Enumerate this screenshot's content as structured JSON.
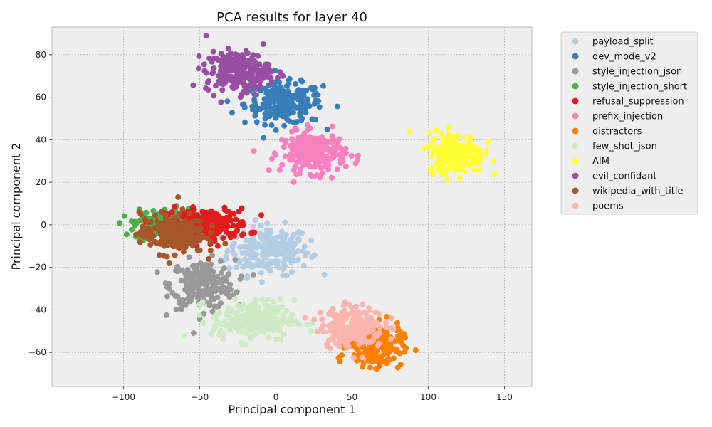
{
  "chart_data": {
    "type": "scatter",
    "title": "PCA results for layer 40",
    "xlabel": "Principal component 1",
    "ylabel": "Principal component 2",
    "xlim": [
      -147,
      168
    ],
    "ylim": [
      -76,
      93
    ],
    "xticks": [
      -100,
      -50,
      0,
      50,
      100,
      150
    ],
    "yticks": [
      -60,
      -40,
      -20,
      0,
      20,
      40,
      60,
      80
    ],
    "grid": true,
    "legend_position": "outside-top-right",
    "series": [
      {
        "name": "payload_split",
        "color": "#b3cde3",
        "center": [
          -5,
          -12
        ],
        "spread": [
          18,
          6
        ],
        "count": 220
      },
      {
        "name": "dev_mode_v2",
        "color": "#377eb8",
        "center": [
          5,
          57
        ],
        "spread": [
          17,
          5
        ],
        "count": 220
      },
      {
        "name": "style_injection_json",
        "color": "#999999",
        "center": [
          -48,
          -28
        ],
        "spread": [
          14,
          6
        ],
        "count": 220
      },
      {
        "name": "style_injection_short",
        "color": "#4daf4a",
        "center": [
          -72,
          0
        ],
        "spread": [
          14,
          4
        ],
        "count": 180
      },
      {
        "name": "refusal_suppression",
        "color": "#e41a1c",
        "center": [
          -45,
          0
        ],
        "spread": [
          18,
          4
        ],
        "count": 220
      },
      {
        "name": "prefix_injection",
        "color": "#f781bf",
        "center": [
          25,
          34
        ],
        "spread": [
          14,
          5
        ],
        "count": 220
      },
      {
        "name": "distractors",
        "color": "#ff7f00",
        "center": [
          65,
          -57
        ],
        "spread": [
          12,
          5
        ],
        "count": 220
      },
      {
        "name": "few_shot_json",
        "color": "#ccebc5",
        "center": [
          -15,
          -45
        ],
        "spread": [
          18,
          5
        ],
        "count": 220
      },
      {
        "name": "AIM",
        "color": "#ffff33",
        "center": [
          118,
          34
        ],
        "spread": [
          12,
          5
        ],
        "count": 220
      },
      {
        "name": "evil_confidant",
        "color": "#984ea3",
        "center": [
          -25,
          72
        ],
        "spread": [
          14,
          5
        ],
        "count": 220
      },
      {
        "name": "wikipedia_with_title",
        "color": "#a65628",
        "center": [
          -68,
          -4
        ],
        "spread": [
          14,
          5
        ],
        "count": 220
      },
      {
        "name": "poems",
        "color": "#fbb4ae",
        "center": [
          50,
          -48
        ],
        "spread": [
          14,
          5
        ],
        "count": 220
      }
    ]
  }
}
